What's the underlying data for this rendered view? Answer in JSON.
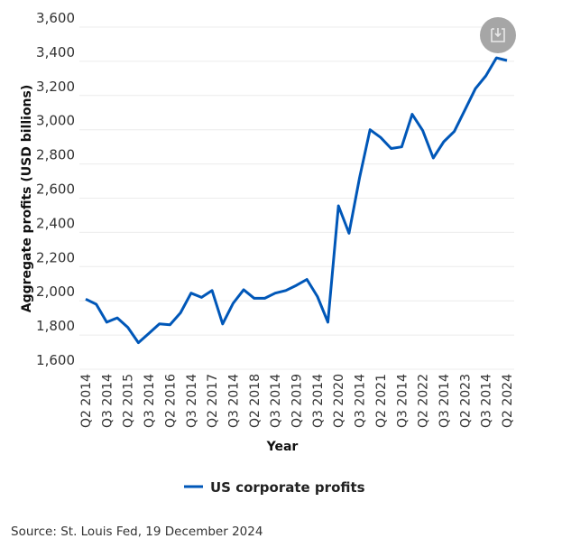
{
  "chart_data": {
    "type": "line",
    "title": "",
    "xlabel": "Year",
    "ylabel": "Aggregate profits (USD billions)",
    "ylim": [
      1600,
      3600
    ],
    "yticks": [
      1600,
      1800,
      2000,
      2200,
      2400,
      2600,
      2800,
      3000,
      3200,
      3400,
      3600
    ],
    "ytick_labels": [
      "1,600",
      "1,800",
      "2,000",
      "2,200",
      "2,400",
      "2,600",
      "2,800",
      "3,000",
      "3,200",
      "3,400",
      "3,600"
    ],
    "xtick_labels": [
      "Q2 2014",
      "Q3 2014",
      "Q2 2015",
      "Q3 2014",
      "Q2 2016",
      "Q3 2014",
      "Q2 2017",
      "Q3 2014",
      "Q2 2018",
      "Q3 2014",
      "Q2 2019",
      "Q3 2014",
      "Q2 2020",
      "Q3 2014",
      "Q2 2021",
      "Q3 2014",
      "Q2 2022",
      "Q3 2014",
      "Q2 2023",
      "Q3 2014",
      "Q2 2024"
    ],
    "grid": "horizontal",
    "legend_placement": "bottom",
    "series": [
      {
        "name": "US corporate profits",
        "color": "#0057b8",
        "values": [
          2010,
          1980,
          1875,
          1900,
          1845,
          1755,
          1810,
          1865,
          1860,
          1930,
          2045,
          2020,
          2060,
          1865,
          1985,
          2065,
          2015,
          2015,
          2045,
          2060,
          2090,
          2125,
          2025,
          1875,
          2555,
          2395,
          2720,
          3000,
          2955,
          2890,
          2900,
          3090,
          2995,
          2835,
          2930,
          2990,
          3115,
          3240,
          3315,
          3420,
          3405
        ]
      }
    ]
  },
  "legend": {
    "label": "US corporate profits"
  },
  "source": "Source: St. Louis Fed, 19 December 2024",
  "download_button": {
    "icon": "download-icon",
    "color": "#a6a6a6"
  }
}
